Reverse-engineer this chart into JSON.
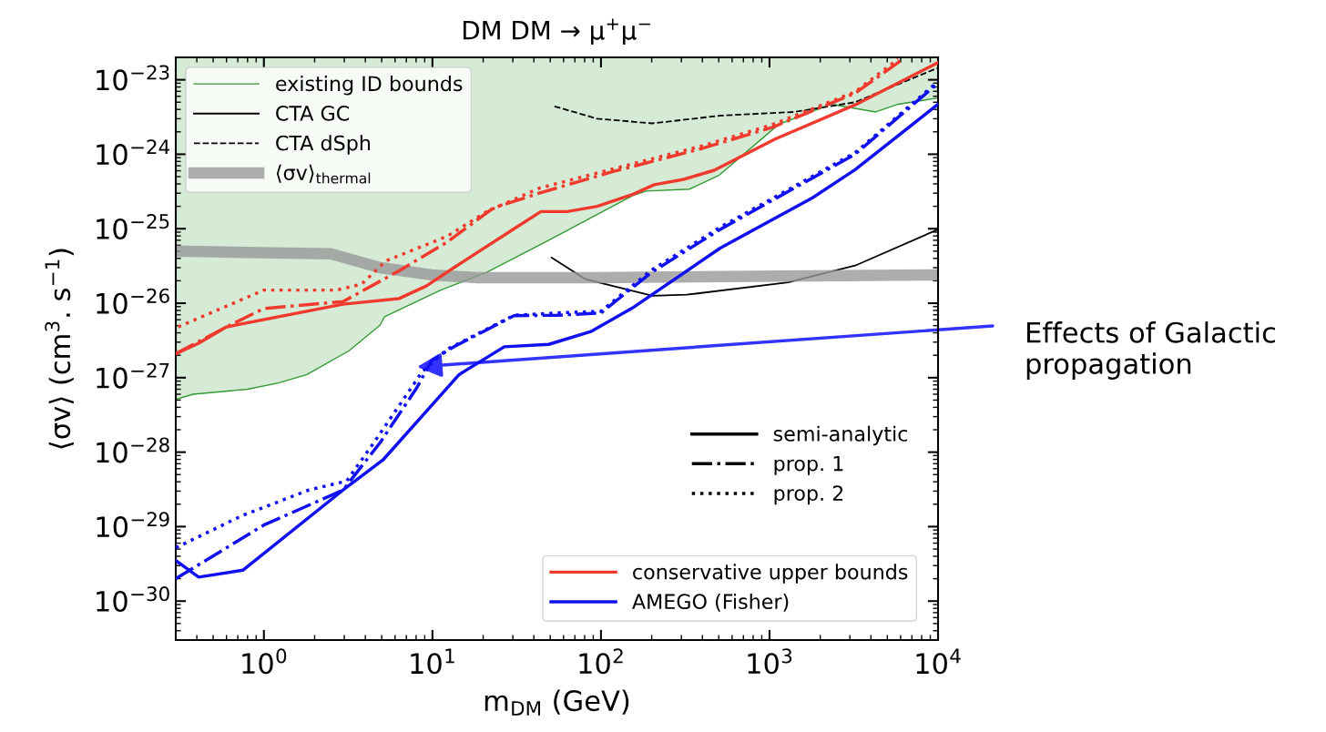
{
  "chart_data": {
    "type": "line",
    "title": "DM DM → μ$^{+}$μ$^{−}$",
    "xlabel": "m$_{DM}$ (GeV)",
    "ylabel": "⟨σv⟩ (cm$^{3}$. s$^{−1}$)",
    "log": "xy",
    "xlim": [
      0.3,
      10000
    ],
    "ylim": [
      3e-31,
      2e-23
    ],
    "xticks": [
      {
        "value": 1,
        "label": "10$^{0}$"
      },
      {
        "value": 10,
        "label": "10$^{1}$"
      },
      {
        "value": 100,
        "label": "10$^{2}$"
      },
      {
        "value": 1000,
        "label": "10$^{3}$"
      },
      {
        "value": 10000,
        "label": "10$^{4}$"
      }
    ],
    "yticks": [
      {
        "value": 1e-30,
        "label": "10$^{−30}$"
      },
      {
        "value": 1e-29,
        "label": "10$^{−29}$"
      },
      {
        "value": 1e-28,
        "label": "10$^{−28}$"
      },
      {
        "value": 1e-27,
        "label": "10$^{−27}$"
      },
      {
        "value": 1e-26,
        "label": "10$^{−26}$"
      },
      {
        "value": 1e-25,
        "label": "10$^{−25}$"
      },
      {
        "value": 1e-24,
        "label": "10$^{−24}$"
      },
      {
        "value": 1e-23,
        "label": "10$^{−23}$"
      }
    ],
    "legend": "top left",
    "grid": false,
    "annotations": [
      "Effects of Galactic\npropagation"
    ],
    "series": [
      {
        "name": "existing ID bounds",
        "color": "#339933",
        "line_style": "solid",
        "x": [
          0.3,
          0.38,
          0.8,
          1.22,
          1.8,
          3.2,
          4.9,
          5.2,
          11.2,
          21,
          49,
          155,
          186,
          335,
          500,
          1130,
          2320,
          4270,
          5800,
          10000
        ],
        "values": [
          5.1e-28,
          6e-28,
          7e-28,
          8.5e-28,
          1.1e-27,
          2.3e-27,
          5.1e-27,
          6.6e-27,
          1.5e-26,
          2.6e-26,
          7e-26,
          2.8e-25,
          3.2e-25,
          3.4e-25,
          5.2e-25,
          2.5e-24,
          4.7e-24,
          3.7e-24,
          4.7e-24,
          5.7e-24
        ]
      },
      {
        "name": "CTA GC",
        "color": "#000000",
        "line_style": "solid",
        "x": [
          51,
          81,
          202,
          322,
          1290,
          3220,
          10000
        ],
        "values": [
          4.1e-26,
          2.1e-26,
          1.26e-26,
          1.3e-26,
          1.9e-26,
          3.2e-26,
          9.8e-26
        ]
      },
      {
        "name": "CTA dSph",
        "color": "#000000",
        "line_style": "dashed",
        "x": [
          53,
          95,
          202,
          510,
          1400,
          3220,
          10000
        ],
        "values": [
          4.4e-24,
          3e-24,
          2.6e-24,
          3.3e-24,
          3.7e-24,
          5e-24,
          1.45e-23
        ]
      },
      {
        "name": "⟨σv⟩$_{thermal}$",
        "color": "#999999",
        "line_style": "solid",
        "x": [
          0.3,
          2.5,
          4.9,
          9.9,
          18.5,
          92,
          10000
        ],
        "values": [
          5e-26,
          4.6e-26,
          3e-26,
          2.4e-26,
          2.2e-26,
          2.2e-26,
          2.4e-26
        ]
      },
      {
        "name": "conservative upper bounds",
        "color": "#f03a2e",
        "line_style": "solid",
        "x": [
          0.3,
          0.41,
          0.6,
          2.95,
          6.3,
          9.2,
          13.4,
          29.5,
          44,
          63,
          95,
          155,
          207,
          310,
          470,
          1080,
          3220,
          10000
        ],
        "values": [
          2.1e-27,
          2.9e-27,
          4.8e-27,
          9.7e-27,
          1.15e-26,
          1.7e-26,
          3e-26,
          9.5e-26,
          1.7e-25,
          1.7e-25,
          2e-25,
          2.9e-25,
          3.9e-25,
          4.6e-25,
          6.1e-25,
          1.6e-24,
          4.6e-24,
          1.7e-23
        ]
      },
      {
        "color": "#f03a2e",
        "line_style": "dashdot",
        "x": [
          0.3,
          0.6,
          1.0,
          2.95,
          6.3,
          12.2,
          23,
          43,
          113,
          400,
          1040,
          3220,
          6200
        ],
        "values": [
          2.1e-27,
          4.8e-27,
          8.5e-27,
          1.05e-26,
          2.7e-26,
          6.6e-26,
          1.9e-25,
          3e-25,
          5.7e-25,
          1.2e-24,
          2.3e-24,
          6.6e-24,
          1.9e-23
        ]
      },
      {
        "color": "#f03a2e",
        "line_style": "dotted",
        "x": [
          0.31,
          1.0,
          2.7,
          3.8,
          5.3,
          12.2,
          21,
          43,
          113,
          400,
          1040,
          3220,
          5800
        ],
        "values": [
          4.8e-27,
          1.5e-26,
          1.5e-26,
          1.8e-26,
          3.7e-26,
          7.9e-26,
          1.7e-25,
          3.5e-25,
          6.2e-25,
          1.3e-24,
          2.5e-24,
          6.9e-24,
          1.9e-23
        ]
      },
      {
        "name": "AMEGO (Fisher)",
        "color": "#1010f0",
        "line_style": "solid",
        "x": [
          0.3,
          0.41,
          0.75,
          2.95,
          5.1,
          14.4,
          26.7,
          49,
          88,
          157,
          510,
          1800,
          3220,
          10000
        ],
        "values": [
          3.5e-30,
          2.1e-30,
          2.6e-30,
          3.1e-29,
          7.9e-29,
          1.1e-27,
          2.6e-27,
          2.8e-27,
          4.2e-27,
          8.9e-27,
          5.5e-26,
          2.6e-25,
          6.2e-25,
          4.7e-24
        ]
      },
      {
        "color": "#1010f0",
        "line_style": "dashdot",
        "x": [
          0.3,
          1.0,
          2.95,
          4.9,
          8.1,
          9.9,
          13.4,
          30.5,
          55,
          100,
          200,
          510,
          1400,
          3220,
          10000
        ],
        "values": [
          2e-30,
          1.05e-29,
          3.1e-29,
          1.35e-28,
          7.4e-28,
          1.7e-27,
          2.6e-27,
          6.8e-27,
          6.9e-27,
          7.4e-27,
          2.6e-26,
          9.8e-26,
          3.5e-25,
          1e-24,
          9e-24
        ]
      },
      {
        "color": "#1010f0",
        "line_style": "dotted",
        "x": [
          0.3,
          0.74,
          1.85,
          3.1,
          4.5,
          8.7,
          12.2,
          30.5,
          55,
          100,
          200,
          510,
          1400,
          3220,
          10000
        ],
        "values": [
          5.2e-30,
          1.4e-29,
          3.1e-29,
          4.1e-29,
          1.35e-28,
          1.2e-27,
          2.4e-27,
          6.9e-27,
          7.4e-27,
          7.8e-27,
          2.8e-26,
          1.05e-25,
          3.7e-25,
          1.05e-24,
          9.5e-24
        ]
      },
      {
        "name": "semi-analytic",
        "color": "#000000",
        "line_style": "solid"
      },
      {
        "name": "prop. 1",
        "color": "#000000",
        "line_style": "dashdot"
      },
      {
        "name": "prop. 2",
        "color": "#000000",
        "line_style": "dotted"
      }
    ]
  }
}
